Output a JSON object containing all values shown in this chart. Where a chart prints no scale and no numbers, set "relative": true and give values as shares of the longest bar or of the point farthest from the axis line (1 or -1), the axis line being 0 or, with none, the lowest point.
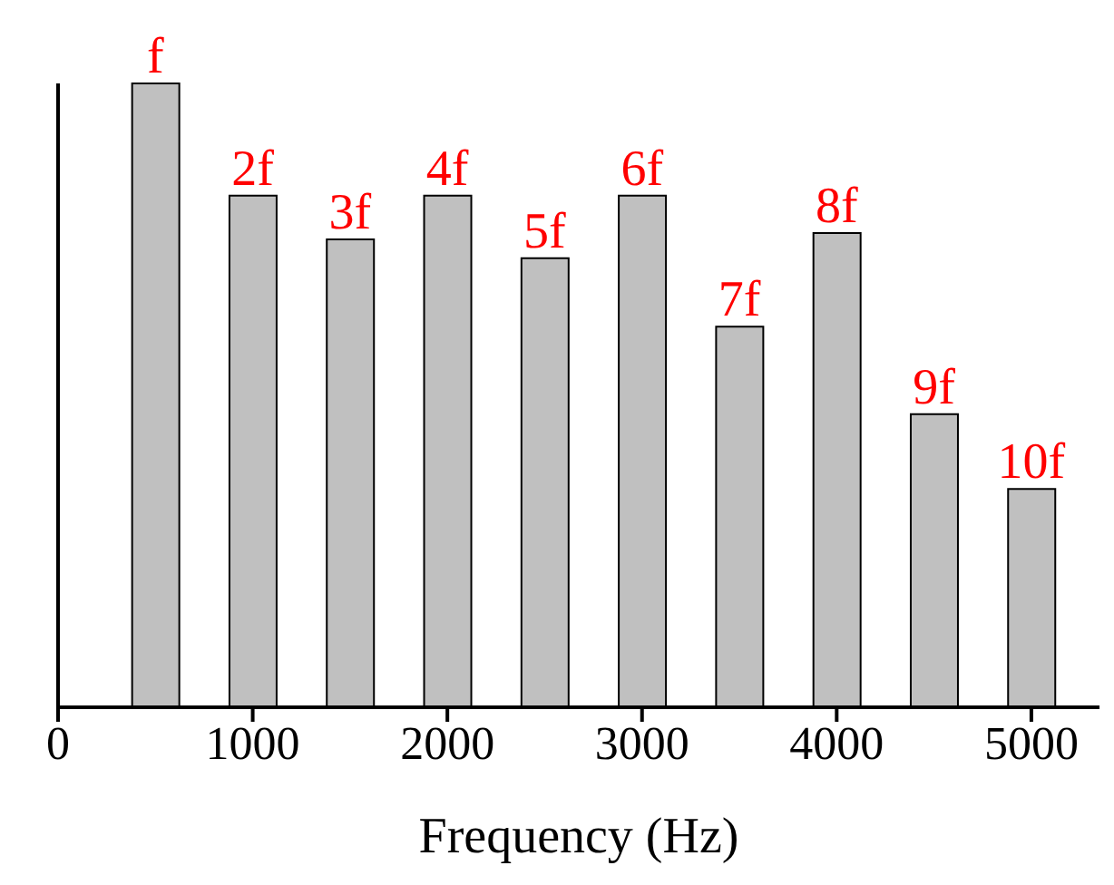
{
  "chart_data": {
    "type": "bar",
    "xlabel": "Frequency (Hz)",
    "relative": true,
    "x": [
      500,
      1000,
      1500,
      2000,
      2500,
      3000,
      3500,
      4000,
      4500,
      5000
    ],
    "values": [
      1,
      0.82,
      0.75,
      0.82,
      0.72,
      0.82,
      0.61,
      0.76,
      0.47,
      0.35
    ],
    "annotations": [
      {
        "text": "f",
        "x": 500,
        "y": 1
      },
      {
        "text": "2f",
        "x": 1000,
        "y": 0.82
      },
      {
        "text": "3f",
        "x": 1500,
        "y": 0.75
      },
      {
        "text": "4f",
        "x": 2000,
        "y": 0.82
      },
      {
        "text": "5f",
        "x": 2500,
        "y": 0.72
      },
      {
        "text": "6f",
        "x": 3000,
        "y": 0.82
      },
      {
        "text": "7f",
        "x": 3500,
        "y": 0.61
      },
      {
        "text": "8f",
        "x": 4000,
        "y": 0.76
      },
      {
        "text": "9f",
        "x": 4500,
        "y": 0.47
      },
      {
        "text": "10f",
        "x": 5000,
        "y": 0.35
      }
    ],
    "color": "#c0c0c0",
    "xlim": [
      0,
      5350
    ],
    "xticks": [
      0,
      1000,
      2000,
      3000,
      4000,
      5000
    ],
    "grid": false,
    "legend": false
  }
}
